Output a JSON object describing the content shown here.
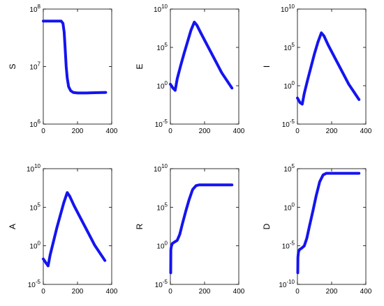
{
  "chart_data": [
    {
      "type": "line",
      "ylabel": "S",
      "yscale": "log",
      "xlim": [
        0,
        400
      ],
      "xticks": [
        0,
        200,
        400
      ],
      "xtick_labels": [
        "0",
        "200",
        "400"
      ],
      "ylim_exp": [
        6,
        8
      ],
      "ytick_exps": [
        6,
        7,
        8
      ],
      "ytick_labels": [
        "10",
        "10",
        "10"
      ],
      "ytick_sups": [
        "6",
        "7",
        "8"
      ],
      "color": "#1414f0",
      "series": [
        {
          "x": [
            0,
            60,
            105,
            115,
            122,
            128,
            134,
            140,
            148,
            160,
            175,
            200,
            250,
            300,
            365
          ],
          "log10_y": [
            7.79,
            7.79,
            7.79,
            7.75,
            7.6,
            7.3,
            7.0,
            6.8,
            6.65,
            6.58,
            6.55,
            6.54,
            6.54,
            6.545,
            6.55
          ]
        }
      ]
    },
    {
      "type": "line",
      "ylabel": "E",
      "yscale": "log",
      "xlim": [
        0,
        400
      ],
      "xticks": [
        0,
        200,
        400
      ],
      "xtick_labels": [
        "0",
        "200",
        "400"
      ],
      "ylim_exp": [
        -5,
        10
      ],
      "ytick_exps": [
        -5,
        0,
        5,
        10
      ],
      "ytick_labels": [
        "10",
        "10",
        "10",
        "10"
      ],
      "ytick_sups": [
        "-5",
        "0",
        "5",
        "10"
      ],
      "color": "#1414f0",
      "series": [
        {
          "x": [
            0,
            15,
            28,
            40,
            60,
            80,
            100,
            120,
            140,
            155,
            180,
            220,
            260,
            300,
            360
          ],
          "log10_y": [
            0.2,
            -0.3,
            -0.6,
            0.9,
            2.6,
            4.2,
            5.7,
            7.2,
            8.3,
            7.9,
            6.8,
            5.1,
            3.4,
            1.7,
            -0.3
          ]
        }
      ]
    },
    {
      "type": "line",
      "ylabel": "I",
      "yscale": "log",
      "xlim": [
        0,
        400
      ],
      "xticks": [
        0,
        200,
        400
      ],
      "xtick_labels": [
        "0",
        "200",
        "400"
      ],
      "ylim_exp": [
        -5,
        10
      ],
      "ytick_exps": [
        -5,
        0,
        5,
        10
      ],
      "ytick_labels": [
        "10",
        "10",
        "10",
        "10"
      ],
      "ytick_sups": [
        "-5",
        "0",
        "5",
        "10"
      ],
      "color": "#1414f0",
      "series": [
        {
          "x": [
            0,
            15,
            28,
            40,
            60,
            80,
            100,
            120,
            140,
            155,
            180,
            220,
            260,
            300,
            360
          ],
          "log10_y": [
            -1.6,
            -2.2,
            -2.4,
            -1.0,
            0.8,
            2.5,
            4.2,
            5.7,
            6.9,
            6.5,
            5.3,
            3.6,
            1.9,
            0.2,
            -1.8
          ]
        }
      ]
    },
    {
      "type": "line",
      "ylabel": "A",
      "yscale": "log",
      "xlim": [
        0,
        400
      ],
      "xticks": [
        0,
        200,
        400
      ],
      "xtick_labels": [
        "0",
        "200",
        "400"
      ],
      "ylim_exp": [
        -5,
        10
      ],
      "ytick_exps": [
        -5,
        0,
        5,
        10
      ],
      "ytick_labels": [
        "10",
        "10",
        "10",
        "10"
      ],
      "ytick_sups": [
        "-5",
        "0",
        "5",
        "10"
      ],
      "color": "#1414f0",
      "series": [
        {
          "x": [
            0,
            15,
            28,
            40,
            60,
            80,
            100,
            120,
            140,
            155,
            180,
            220,
            260,
            300,
            360
          ],
          "log10_y": [
            -1.7,
            -2.2,
            -2.6,
            -1.2,
            0.6,
            2.4,
            4.0,
            5.6,
            6.9,
            6.4,
            5.2,
            3.5,
            1.8,
            0.1,
            -1.9
          ]
        }
      ]
    },
    {
      "type": "line",
      "ylabel": "R",
      "yscale": "log",
      "xlim": [
        0,
        400
      ],
      "xticks": [
        0,
        200,
        400
      ],
      "xtick_labels": [
        "0",
        "200",
        "400"
      ],
      "ylim_exp": [
        -5,
        10
      ],
      "ytick_exps": [
        -5,
        0,
        5,
        10
      ],
      "ytick_labels": [
        "10",
        "10",
        "10",
        "10"
      ],
      "ytick_sups": [
        "-5",
        "0",
        "5",
        "10"
      ],
      "color": "#1414f0",
      "series": [
        {
          "x": [
            2,
            3,
            6,
            12,
            25,
            40,
            55,
            70,
            90,
            110,
            130,
            150,
            170,
            200,
            250,
            300,
            360
          ],
          "log10_y": [
            -3.5,
            -0.5,
            0.0,
            0.3,
            0.5,
            0.7,
            1.5,
            2.8,
            4.5,
            6.0,
            7.3,
            7.8,
            7.9,
            7.9,
            7.9,
            7.9,
            7.9
          ]
        }
      ]
    },
    {
      "type": "line",
      "ylabel": "D",
      "yscale": "log",
      "xlim": [
        0,
        400
      ],
      "xticks": [
        0,
        200,
        400
      ],
      "xtick_labels": [
        "0",
        "200",
        "400"
      ],
      "ylim_exp": [
        -10,
        5
      ],
      "ytick_exps": [
        -10,
        -5,
        0,
        5
      ],
      "ytick_labels": [
        "10",
        "10",
        "10",
        "10"
      ],
      "ytick_sups": [
        "-10",
        "-5",
        "0",
        "5"
      ],
      "color": "#1414f0",
      "series": [
        {
          "x": [
            2,
            3,
            6,
            12,
            25,
            40,
            55,
            70,
            90,
            110,
            130,
            150,
            170,
            200,
            250,
            300,
            360
          ],
          "log10_y": [
            -8.5,
            -6.5,
            -5.8,
            -5.5,
            -5.3,
            -5.0,
            -4.0,
            -2.5,
            -0.5,
            1.5,
            3.3,
            4.2,
            4.4,
            4.4,
            4.4,
            4.4,
            4.4
          ]
        }
      ]
    }
  ]
}
